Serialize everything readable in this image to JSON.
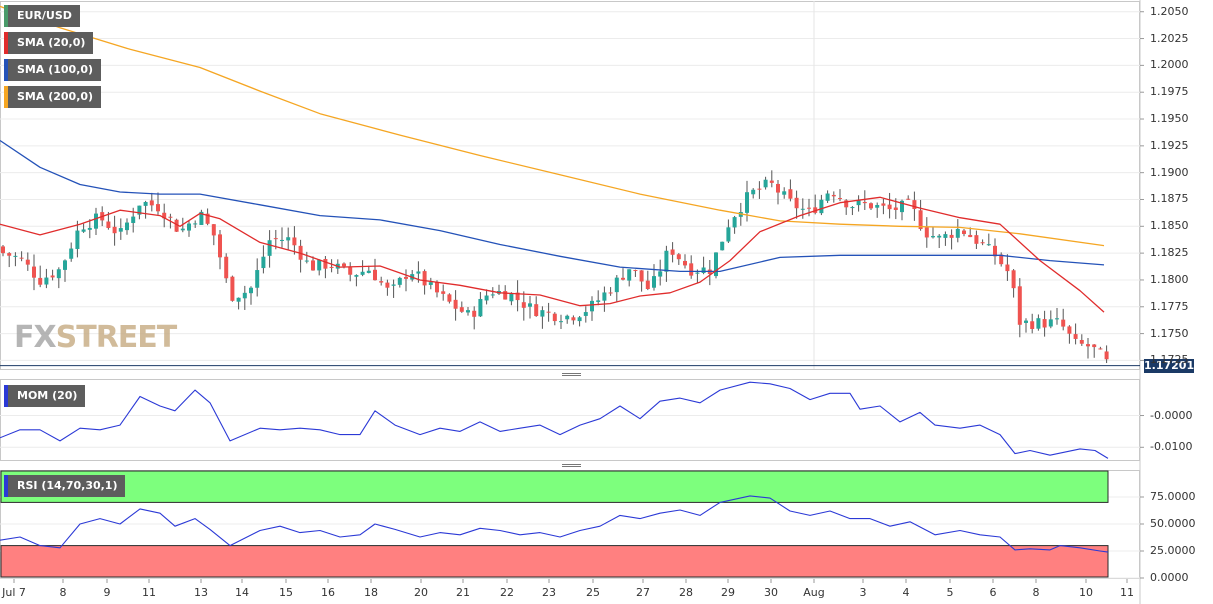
{
  "legend": {
    "symbol": "EUR/USD",
    "sma20": "SMA (20,0)",
    "sma100": "SMA (100,0)",
    "sma200": "SMA (200,0)",
    "mom": "MOM (20)",
    "rsi": "RSI (14,70,30,1)"
  },
  "colors": {
    "symbol": "#4a9a6a",
    "sma20": "#e02c2c",
    "sma100": "#2452b8",
    "sma200": "#f5a623",
    "up": "#26a69a",
    "down": "#ef5350",
    "mom": "#2b39d6",
    "rsi": "#2b39d6",
    "overbought_zone": "#7dff7d",
    "oversold_zone": "#ff8080"
  },
  "watermark": {
    "fx": "FX",
    "street": "STREET"
  },
  "last_price": "1.17201",
  "chart_data": [
    {
      "type": "candlestick",
      "title": "EUR/USD",
      "timeframe_labels": [
        "Jul 7",
        "8",
        "9",
        "11",
        "13",
        "14",
        "15",
        "16",
        "18",
        "20",
        "21",
        "22",
        "23",
        "25",
        "27",
        "28",
        "29",
        "30",
        "Aug",
        "3",
        "4",
        "5",
        "6",
        "8",
        "10",
        "11"
      ],
      "ylim": [
        1.1717,
        1.206
      ],
      "yticks": [
        "1.2050",
        "1.2025",
        "1.2000",
        "1.1975",
        "1.1950",
        "1.1925",
        "1.1900",
        "1.1875",
        "1.1850",
        "1.1825",
        "1.1800",
        "1.1775",
        "1.1750",
        "1.1725"
      ],
      "close_path": [
        [
          0,
          1.1826
        ],
        [
          20,
          1.182
        ],
        [
          40,
          1.18
        ],
        [
          60,
          1.181
        ],
        [
          80,
          1.185
        ],
        [
          100,
          1.1858
        ],
        [
          120,
          1.1842
        ],
        [
          140,
          1.1873
        ],
        [
          160,
          1.1868
        ],
        [
          180,
          1.1845
        ],
        [
          200,
          1.1862
        ],
        [
          215,
          1.184
        ],
        [
          230,
          1.1785
        ],
        [
          250,
          1.179
        ],
        [
          270,
          1.1838
        ],
        [
          290,
          1.1838
        ],
        [
          310,
          1.1812
        ],
        [
          330,
          1.1815
        ],
        [
          350,
          1.1805
        ],
        [
          370,
          1.181
        ],
        [
          390,
          1.1787
        ],
        [
          410,
          1.181
        ],
        [
          430,
          1.1793
        ],
        [
          450,
          1.1778
        ],
        [
          470,
          1.1766
        ],
        [
          490,
          1.179
        ],
        [
          510,
          1.1787
        ],
        [
          530,
          1.1774
        ],
        [
          550,
          1.1768
        ],
        [
          570,
          1.1766
        ],
        [
          590,
          1.1774
        ],
        [
          610,
          1.1792
        ],
        [
          630,
          1.1812
        ],
        [
          650,
          1.179
        ],
        [
          670,
          1.183
        ],
        [
          690,
          1.181
        ],
        [
          710,
          1.181
        ],
        [
          730,
          1.1856
        ],
        [
          750,
          1.188
        ],
        [
          770,
          1.189
        ],
        [
          790,
          1.1872
        ],
        [
          810,
          1.1862
        ],
        [
          830,
          1.1885
        ],
        [
          850,
          1.187
        ],
        [
          870,
          1.187
        ],
        [
          890,
          1.1865
        ],
        [
          910,
          1.187
        ],
        [
          925,
          1.1845
        ],
        [
          940,
          1.1838
        ],
        [
          960,
          1.1848
        ],
        [
          975,
          1.1838
        ],
        [
          995,
          1.1823
        ],
        [
          1010,
          1.1805
        ],
        [
          1020,
          1.176
        ],
        [
          1040,
          1.176
        ],
        [
          1060,
          1.176
        ],
        [
          1075,
          1.174
        ],
        [
          1090,
          1.1738
        ],
        [
          1100,
          1.173
        ],
        [
          1108,
          1.1721
        ]
      ],
      "sma_20": [
        [
          0,
          1.1852
        ],
        [
          40,
          1.1842
        ],
        [
          80,
          1.1852
        ],
        [
          120,
          1.1865
        ],
        [
          160,
          1.186
        ],
        [
          180,
          1.185
        ],
        [
          200,
          1.1862
        ],
        [
          220,
          1.1857
        ],
        [
          260,
          1.1835
        ],
        [
          300,
          1.1825
        ],
        [
          340,
          1.1812
        ],
        [
          380,
          1.1813
        ],
        [
          420,
          1.18
        ],
        [
          460,
          1.1795
        ],
        [
          500,
          1.1788
        ],
        [
          540,
          1.1786
        ],
        [
          580,
          1.1776
        ],
        [
          610,
          1.1778
        ],
        [
          640,
          1.1785
        ],
        [
          670,
          1.1788
        ],
        [
          700,
          1.1798
        ],
        [
          730,
          1.1818
        ],
        [
          760,
          1.1845
        ],
        [
          800,
          1.186
        ],
        [
          840,
          1.1872
        ],
        [
          880,
          1.1877
        ],
        [
          920,
          1.1867
        ],
        [
          960,
          1.1858
        ],
        [
          1000,
          1.1852
        ],
        [
          1040,
          1.1818
        ],
        [
          1080,
          1.179
        ],
        [
          1104,
          1.177
        ]
      ],
      "sma_100": [
        [
          0,
          1.193
        ],
        [
          40,
          1.1905
        ],
        [
          80,
          1.1889
        ],
        [
          120,
          1.1882
        ],
        [
          160,
          1.188
        ],
        [
          200,
          1.188
        ],
        [
          260,
          1.187
        ],
        [
          320,
          1.186
        ],
        [
          380,
          1.1856
        ],
        [
          440,
          1.1846
        ],
        [
          500,
          1.1833
        ],
        [
          560,
          1.1822
        ],
        [
          620,
          1.1812
        ],
        [
          680,
          1.1808
        ],
        [
          720,
          1.1808
        ],
        [
          780,
          1.1821
        ],
        [
          840,
          1.1823
        ],
        [
          900,
          1.1823
        ],
        [
          960,
          1.1823
        ],
        [
          1000,
          1.1823
        ],
        [
          1050,
          1.1818
        ],
        [
          1104,
          1.1814
        ]
      ],
      "sma_200": [
        [
          0,
          1.2055
        ],
        [
          60,
          1.2035
        ],
        [
          130,
          1.2015
        ],
        [
          200,
          1.1998
        ],
        [
          260,
          1.1976
        ],
        [
          320,
          1.1955
        ],
        [
          400,
          1.1935
        ],
        [
          480,
          1.1916
        ],
        [
          560,
          1.1898
        ],
        [
          640,
          1.188
        ],
        [
          720,
          1.1865
        ],
        [
          780,
          1.1855
        ],
        [
          840,
          1.1852
        ],
        [
          900,
          1.185
        ],
        [
          960,
          1.1849
        ],
        [
          1020,
          1.1843
        ],
        [
          1104,
          1.1832
        ]
      ]
    },
    {
      "type": "line",
      "title": "MOM (20)",
      "ylim": [
        -0.014,
        0.0115
      ],
      "yticks": [
        "-0.0000",
        "-0.0100"
      ],
      "values": [
        [
          0,
          -0.007
        ],
        [
          20,
          -0.0045
        ],
        [
          40,
          -0.0045
        ],
        [
          60,
          -0.008
        ],
        [
          80,
          -0.004
        ],
        [
          100,
          -0.0045
        ],
        [
          120,
          -0.003
        ],
        [
          140,
          0.006
        ],
        [
          160,
          0.003
        ],
        [
          175,
          0.0015
        ],
        [
          195,
          0.008
        ],
        [
          210,
          0.004
        ],
        [
          230,
          -0.008
        ],
        [
          260,
          -0.004
        ],
        [
          280,
          -0.0045
        ],
        [
          300,
          -0.004
        ],
        [
          320,
          -0.0045
        ],
        [
          340,
          -0.006
        ],
        [
          360,
          -0.006
        ],
        [
          375,
          0.0015
        ],
        [
          395,
          -0.003
        ],
        [
          420,
          -0.006
        ],
        [
          440,
          -0.004
        ],
        [
          460,
          -0.005
        ],
        [
          480,
          -0.002
        ],
        [
          500,
          -0.005
        ],
        [
          520,
          -0.004
        ],
        [
          540,
          -0.003
        ],
        [
          560,
          -0.006
        ],
        [
          580,
          -0.003
        ],
        [
          600,
          -0.001
        ],
        [
          620,
          0.003
        ],
        [
          640,
          -0.001
        ],
        [
          660,
          0.0045
        ],
        [
          680,
          0.0055
        ],
        [
          700,
          0.004
        ],
        [
          720,
          0.008
        ],
        [
          750,
          0.0105
        ],
        [
          770,
          0.01
        ],
        [
          790,
          0.0085
        ],
        [
          810,
          0.005
        ],
        [
          830,
          0.007
        ],
        [
          850,
          0.007
        ],
        [
          860,
          0.002
        ],
        [
          880,
          0.003
        ],
        [
          900,
          -0.002
        ],
        [
          920,
          0.001
        ],
        [
          935,
          -0.003
        ],
        [
          960,
          -0.004
        ],
        [
          980,
          -0.003
        ],
        [
          1000,
          -0.006
        ],
        [
          1015,
          -0.012
        ],
        [
          1030,
          -0.011
        ],
        [
          1050,
          -0.0125
        ],
        [
          1080,
          -0.0105
        ],
        [
          1095,
          -0.011
        ],
        [
          1108,
          -0.0135
        ]
      ]
    },
    {
      "type": "line",
      "title": "RSI (14,70,30,1)",
      "ylim": [
        0,
        100
      ],
      "yticks": [
        "75.0000",
        "50.0000",
        "25.0000",
        "0.0000"
      ],
      "overbought": 70,
      "oversold": 30,
      "values": [
        [
          0,
          35
        ],
        [
          20,
          38
        ],
        [
          40,
          30
        ],
        [
          60,
          28
        ],
        [
          80,
          50
        ],
        [
          100,
          55
        ],
        [
          120,
          50
        ],
        [
          140,
          64
        ],
        [
          160,
          60
        ],
        [
          175,
          48
        ],
        [
          195,
          55
        ],
        [
          210,
          45
        ],
        [
          230,
          30
        ],
        [
          260,
          44
        ],
        [
          280,
          48
        ],
        [
          300,
          42
        ],
        [
          320,
          44
        ],
        [
          340,
          38
        ],
        [
          360,
          40
        ],
        [
          375,
          50
        ],
        [
          395,
          45
        ],
        [
          420,
          38
        ],
        [
          440,
          42
        ],
        [
          460,
          40
        ],
        [
          480,
          46
        ],
        [
          500,
          44
        ],
        [
          520,
          40
        ],
        [
          540,
          42
        ],
        [
          560,
          38
        ],
        [
          580,
          44
        ],
        [
          600,
          48
        ],
        [
          620,
          58
        ],
        [
          640,
          55
        ],
        [
          660,
          60
        ],
        [
          680,
          63
        ],
        [
          700,
          58
        ],
        [
          720,
          70
        ],
        [
          750,
          76
        ],
        [
          770,
          74
        ],
        [
          790,
          62
        ],
        [
          810,
          58
        ],
        [
          830,
          62
        ],
        [
          850,
          55
        ],
        [
          870,
          55
        ],
        [
          890,
          48
        ],
        [
          910,
          52
        ],
        [
          935,
          40
        ],
        [
          960,
          44
        ],
        [
          980,
          40
        ],
        [
          1000,
          38
        ],
        [
          1015,
          26
        ],
        [
          1030,
          27
        ],
        [
          1050,
          26
        ],
        [
          1060,
          30
        ],
        [
          1080,
          28
        ],
        [
          1100,
          25
        ],
        [
          1108,
          24
        ]
      ]
    }
  ]
}
